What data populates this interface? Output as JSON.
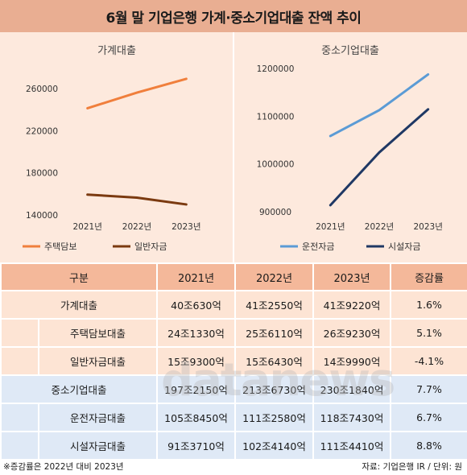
{
  "title": "6월 말 기업은행 가계·중소기업대출 잔액 추이",
  "colors": {
    "title_bg": "#e9ae92",
    "panel_bg": "#fde9dd",
    "orange": "#f07f3c",
    "brown": "#7b3a10",
    "light_blue": "#5b9bd5",
    "navy": "#1f3864"
  },
  "chart_data": [
    {
      "type": "line",
      "title": "가계대출",
      "categories": [
        "2021년",
        "2022년",
        "2023년"
      ],
      "ylim": [
        140000,
        260000
      ],
      "yticks": [
        "260000",
        "220000",
        "180000",
        "140000"
      ],
      "ytick_values": [
        260000,
        220000,
        180000,
        140000
      ],
      "series": [
        {
          "name": "주택담보",
          "color": "#f07f3c",
          "values": [
            241330,
            256110,
            269230
          ]
        },
        {
          "name": "일반자금",
          "color": "#7b3a10",
          "values": [
            159300,
            156430,
            149990
          ]
        }
      ]
    },
    {
      "type": "line",
      "title": "중소기업대출",
      "categories": [
        "2021년",
        "2022년",
        "2023년"
      ],
      "ylim": [
        900000,
        1200000
      ],
      "yticks": [
        "1200000",
        "1100000",
        "1000000",
        "900000"
      ],
      "ytick_values": [
        1200000,
        1100000,
        1000000,
        900000
      ],
      "series": [
        {
          "name": "운전자금",
          "color": "#5b9bd5",
          "values": [
            1058450,
            1112580,
            1187430
          ]
        },
        {
          "name": "시설자금",
          "color": "#1f3864",
          "values": [
            913710,
            1024140,
            1114410
          ]
        }
      ]
    }
  ],
  "table": {
    "headers": [
      "구분",
      "2021년",
      "2022년",
      "2023년",
      "증감률"
    ],
    "rows": [
      {
        "label": "가계대출",
        "v2021": "40조630억",
        "v2022": "41조2550억",
        "v2023": "41조9220억",
        "change": "1.6%"
      },
      {
        "label": "주택담보대출",
        "v2021": "24조1330억",
        "v2022": "25조6110억",
        "v2023": "26조9230억",
        "change": "5.1%"
      },
      {
        "label": "일반자금대출",
        "v2021": "15조9300억",
        "v2022": "15조6430억",
        "v2023": "14조9990억",
        "change": "-4.1%"
      },
      {
        "label": "중소기업대출",
        "v2021": "197조2150억",
        "v2022": "213조6730억",
        "v2023": "230조1840억",
        "change": "7.7%"
      },
      {
        "label": "운전자금대출",
        "v2021": "105조8450억",
        "v2022": "111조2580억",
        "v2023": "118조7430억",
        "change": "6.7%"
      },
      {
        "label": "시설자금대출",
        "v2021": "91조3710억",
        "v2022": "102조4140억",
        "v2023": "111조4410억",
        "change": "8.8%"
      }
    ]
  },
  "footer": {
    "note": "※증감률은 2022년 대비 2023년",
    "source": "자료: 기업은행 IR / 단위: 원"
  },
  "watermark": "datanews"
}
